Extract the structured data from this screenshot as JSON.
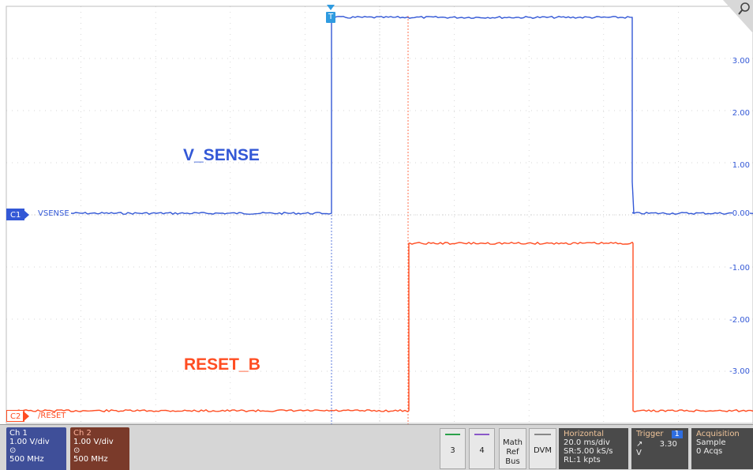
{
  "display": {
    "channel1": {
      "marker": "C1",
      "name": "VSENSE",
      "color": "#3358d6"
    },
    "channel2": {
      "marker": "C2",
      "name": "/RESET",
      "color": "#ff4d22"
    },
    "labels": {
      "vsense": "V_SENSE",
      "reset": "RESET_B"
    },
    "scale": [
      "3.00",
      "2.00",
      "1.00",
      "0.00",
      "-1.00",
      "-2.00",
      "-3.00"
    ],
    "trigger_marker": "T",
    "icons": {
      "zoom": "magnifier-icon"
    }
  },
  "status": {
    "ch1": {
      "title": "Ch 1",
      "scale": "1.00 V/div",
      "bw_icon": "⊙",
      "bw": "500 MHz"
    },
    "ch2": {
      "title": "Ch 2",
      "scale": "1.00 V/div",
      "bw_icon": "⊙",
      "bw": "500 MHz"
    },
    "buttons": {
      "b3": "3",
      "b4": "4",
      "math": [
        "Math",
        "Ref",
        "Bus"
      ],
      "dvm": "DVM"
    },
    "horizontal": {
      "title": "Horizontal",
      "scale": "20.0 ms/div",
      "sr": "SR:5.00 kS/s",
      "rl": "RL:1 kpts"
    },
    "trigger": {
      "title": "Trigger",
      "channel": "1",
      "level": "3.30 V",
      "slope_icon": "rising-edge-icon"
    },
    "acquisition": {
      "title": "Acquisition",
      "mode": "Sample",
      "acqs": "0 Acqs"
    }
  }
}
